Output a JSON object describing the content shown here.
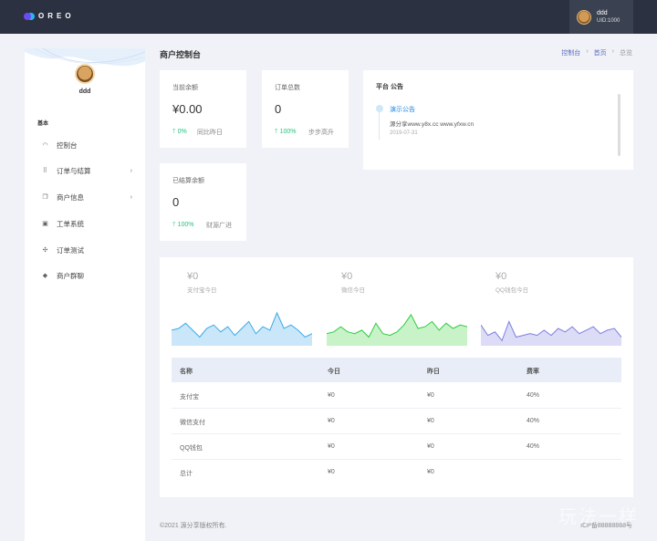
{
  "app": {
    "logo_text": "OREO"
  },
  "user": {
    "name": "ddd",
    "uid": "UID:1000"
  },
  "sidebar": {
    "section": "基本",
    "items": [
      {
        "label": "控制台",
        "icon": "dashboard-icon"
      },
      {
        "label": "订单与结算",
        "icon": "grid-icon",
        "has_children": true
      },
      {
        "label": "商户信息",
        "icon": "copy-icon",
        "has_children": true
      },
      {
        "label": "工单系统",
        "icon": "user-card-icon"
      },
      {
        "label": "订单测试",
        "icon": "network-icon"
      },
      {
        "label": "商户群聊",
        "icon": "group-icon"
      }
    ]
  },
  "header": {
    "title": "商户控制台",
    "breadcrumb": [
      "控制台",
      "首页",
      "总览"
    ]
  },
  "stats": [
    {
      "label": "当前余额",
      "value": "¥0.00",
      "trend": "0%",
      "note": "同比昨日"
    },
    {
      "label": "订单总数",
      "value": "0",
      "trend": "100%",
      "note": "步步高升"
    },
    {
      "label": "已结算余额",
      "value": "0",
      "trend": "100%",
      "note": "财源广进"
    }
  ],
  "notice": {
    "title": "平台 公告",
    "item_title": "演示公告",
    "item_body": "源分享www.y8x.cc www.yfxw.cn",
    "item_date": "2019-07-31"
  },
  "mini_stats": [
    {
      "value": "¥0",
      "label": "支付宝今日",
      "color": "#3aa9e8",
      "fill": "#c9e7f8"
    },
    {
      "value": "¥0",
      "label": "微信今日",
      "color": "#2ecc40",
      "fill": "#c8f2c8"
    },
    {
      "value": "¥0",
      "label": "QQ钱包今日",
      "color": "#7b7fe0",
      "fill": "#dcdcf6"
    }
  ],
  "sparklines": [
    [
      18,
      20,
      26,
      18,
      10,
      20,
      24,
      16,
      22,
      12,
      20,
      28,
      14,
      22,
      18,
      38,
      20,
      24,
      18,
      10,
      14
    ],
    [
      14,
      16,
      22,
      16,
      14,
      18,
      10,
      26,
      14,
      12,
      16,
      24,
      36,
      20,
      22,
      28,
      18,
      26,
      20,
      24,
      22
    ],
    [
      24,
      12,
      16,
      6,
      28,
      10,
      12,
      14,
      12,
      18,
      12,
      20,
      16,
      22,
      14,
      18,
      22,
      14,
      18,
      20,
      10
    ]
  ],
  "table": {
    "headers": [
      "名称",
      "今日",
      "昨日",
      "费率"
    ],
    "rows": [
      [
        "支付宝",
        "¥0",
        "¥0",
        "40%"
      ],
      [
        "微信支付",
        "¥0",
        "¥0",
        "40%"
      ],
      [
        "QQ钱包",
        "¥0",
        "¥0",
        "40%"
      ],
      [
        "总计",
        "¥0",
        "¥0",
        ""
      ]
    ]
  },
  "footer": {
    "copyright": "©2021 源分享版权所有.",
    "icp": "ICP备88888888号"
  },
  "watermark": "玩法一样"
}
